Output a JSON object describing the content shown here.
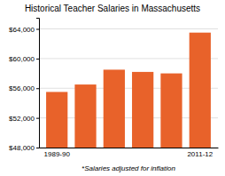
{
  "chart_data": {
    "type": "bar",
    "title": "Historical Teacher Salaries in Massachusetts",
    "categories": [
      "1989-90",
      null,
      null,
      null,
      null,
      "2011-12"
    ],
    "values": [
      55500,
      56500,
      58500,
      58200,
      58000,
      63500
    ],
    "color": "#E8622A",
    "ylim": [
      48000,
      65500
    ],
    "yticks": [
      {
        "value": 48000,
        "label": "$48,000"
      },
      {
        "value": 52000,
        "label": "$52,000"
      },
      {
        "value": 56000,
        "label": "$56,000"
      },
      {
        "value": 60000,
        "label": "$60,000"
      },
      {
        "value": 64000,
        "label": "$64,000"
      }
    ],
    "xlabel": "*Salaries adjusted for inflation",
    "grid": true
  }
}
